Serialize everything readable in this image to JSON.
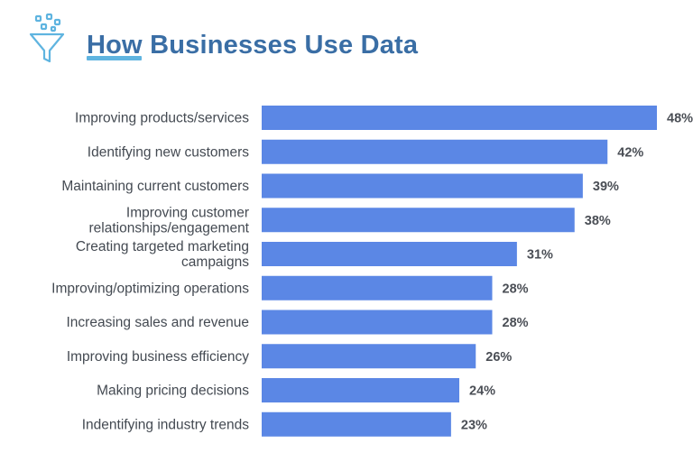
{
  "header": {
    "title": "How Businesses Use Data",
    "icon": "funnel-icon"
  },
  "colors": {
    "title": "#3a6ea5",
    "accent": "#5fb4e0",
    "bar": "#5b87e5",
    "icon": "#5fb4e0"
  },
  "chart_data": {
    "type": "bar",
    "orientation": "horizontal",
    "title": "How Businesses Use Data",
    "xlabel": "",
    "ylabel": "",
    "xlim": [
      0,
      50
    ],
    "grid": false,
    "legend": "none",
    "categories": [
      "Improving products/services",
      "Identifying new customers",
      "Maintaining current customers",
      "Improving customer relationships/engagement",
      "Creating targeted marketing campaigns",
      "Improving/optimizing operations",
      "Increasing sales and revenue",
      "Improving business efficiency",
      "Making pricing decisions",
      "Indentifying industry trends"
    ],
    "category_lines": [
      [
        "Improving products/services"
      ],
      [
        "Identifying new customers"
      ],
      [
        "Maintaining current customers"
      ],
      [
        "Improving customer",
        "relationships/engagement"
      ],
      [
        "Creating targeted marketing",
        "campaigns"
      ],
      [
        "Improving/optimizing operations"
      ],
      [
        "Increasing sales and revenue"
      ],
      [
        "Improving business efficiency"
      ],
      [
        "Making pricing decisions"
      ],
      [
        "Indentifying industry trends"
      ]
    ],
    "values": [
      48,
      42,
      39,
      38,
      31,
      28,
      28,
      26,
      24,
      23
    ],
    "value_labels": [
      "48%",
      "42%",
      "39%",
      "38%",
      "31%",
      "28%",
      "28%",
      "26%",
      "24%",
      "23%"
    ]
  }
}
